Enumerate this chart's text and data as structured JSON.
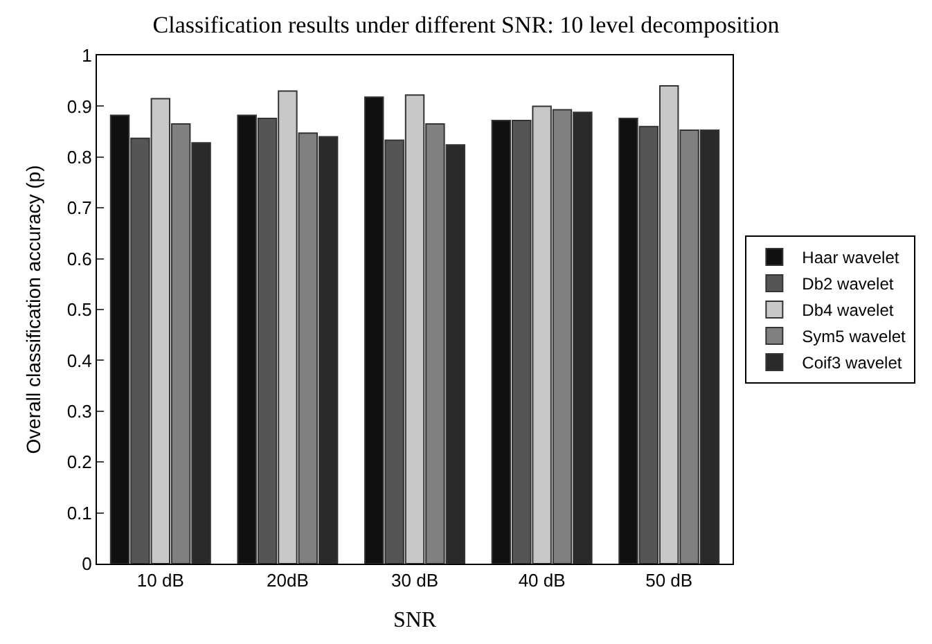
{
  "chart_data": {
    "type": "bar",
    "title": "Classification results under different SNR: 10 level decomposition",
    "xlabel": "SNR",
    "ylabel": "Overall classification accuracy (p)",
    "categories": [
      "10 dB",
      "20dB",
      "30 dB",
      "40 dB",
      "50 dB"
    ],
    "series": [
      {
        "name": "Haar wavelet",
        "color": "#111111",
        "values": [
          0.882,
          0.882,
          0.918,
          0.872,
          0.876
        ]
      },
      {
        "name": "Db2 wavelet",
        "color": "#555555",
        "values": [
          0.837,
          0.876,
          0.833,
          0.872,
          0.86
        ]
      },
      {
        "name": "Db4 wavelet",
        "color": "#c8c8c8",
        "values": [
          0.915,
          0.93,
          0.922,
          0.9,
          0.94
        ]
      },
      {
        "name": "Sym5 wavelet",
        "color": "#808080",
        "values": [
          0.865,
          0.847,
          0.865,
          0.893,
          0.853
        ]
      },
      {
        "name": "Coif3 wavelet",
        "color": "#2a2a2a",
        "values": [
          0.828,
          0.84,
          0.824,
          0.888,
          0.853
        ]
      }
    ],
    "ylim": [
      0,
      1
    ],
    "yticks": [
      0,
      0.1,
      0.2,
      0.3,
      0.4,
      0.5,
      0.6,
      0.7,
      0.8,
      0.9,
      1
    ],
    "legend": "right"
  }
}
